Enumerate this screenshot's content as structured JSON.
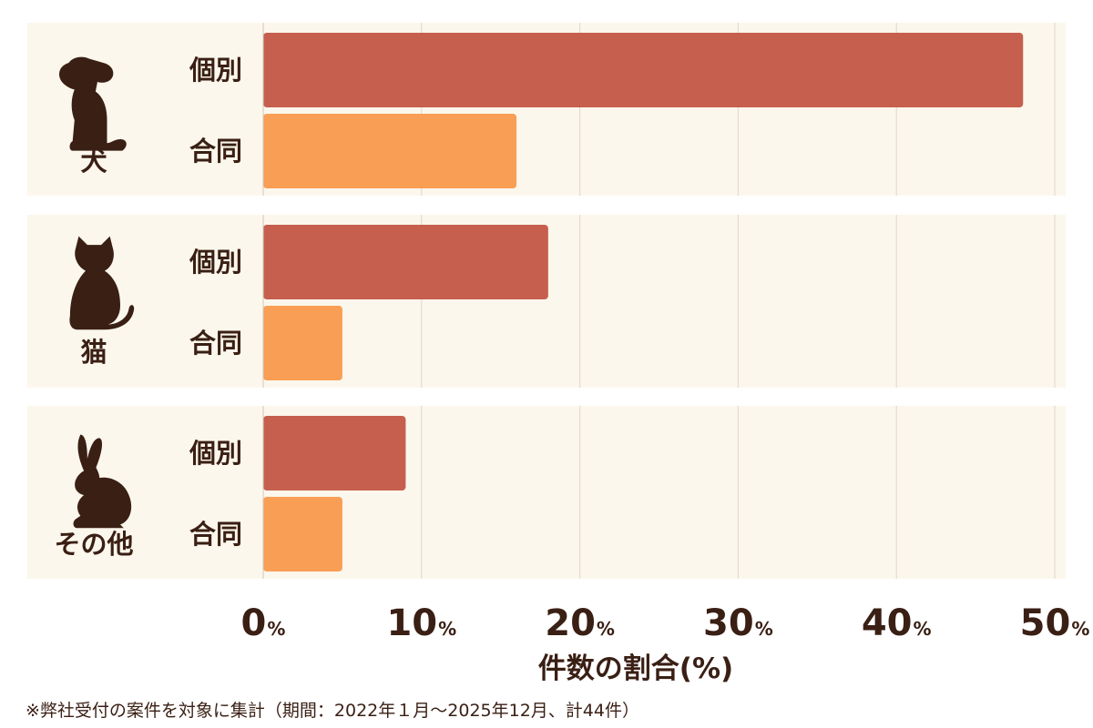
{
  "chart_data": {
    "type": "bar",
    "orientation": "horizontal",
    "groups": [
      {
        "label": "犬",
        "icon": "dog-icon",
        "bars": [
          {
            "label": "個別",
            "value": 48
          },
          {
            "label": "合同",
            "value": 16
          }
        ]
      },
      {
        "label": "猫",
        "icon": "cat-icon",
        "bars": [
          {
            "label": "個別",
            "value": 18
          },
          {
            "label": "合同",
            "value": 5
          }
        ]
      },
      {
        "label": "その他",
        "icon": "rabbit-icon",
        "bars": [
          {
            "label": "個別",
            "value": 9
          },
          {
            "label": "合同",
            "value": 5
          }
        ]
      }
    ],
    "series": [
      {
        "name": "個別",
        "color": "#c65f4e"
      },
      {
        "name": "合同",
        "color": "#f99e55"
      }
    ],
    "xlim": [
      0,
      50
    ],
    "ticks": [
      0,
      10,
      20,
      30,
      40,
      50
    ],
    "tick_unit": "%",
    "xlabel": "件数の割合(%)",
    "grid": true,
    "panel_color": "#fcf7ec",
    "text_color": "#3a1f14"
  },
  "footnote": "※弊社受付の案件を対象に集計（期間：2022年１月〜2025年12月、計44件）"
}
